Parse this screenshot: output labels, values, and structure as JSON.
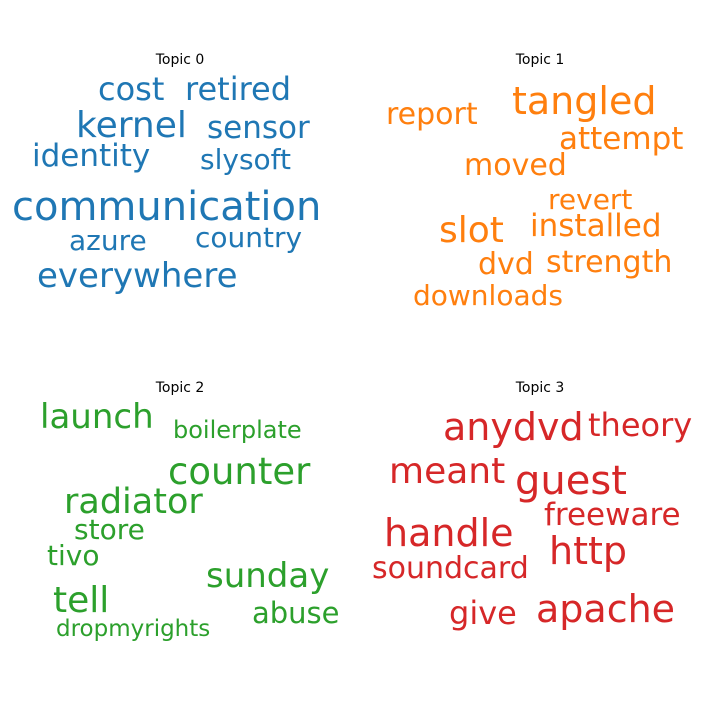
{
  "topics": [
    {
      "title": "Topic 0",
      "color": "#1f77b4",
      "words": [
        "cost",
        "retired",
        "kernel",
        "sensor",
        "identity",
        "slysoft",
        "communication",
        "azure",
        "country",
        "everywhere"
      ]
    },
    {
      "title": "Topic 1",
      "color": "#ff7f0e",
      "words": [
        "tangled",
        "report",
        "attempt",
        "moved",
        "revert",
        "slot",
        "installed",
        "dvd",
        "strength",
        "downloads"
      ]
    },
    {
      "title": "Topic 2",
      "color": "#2ca02c",
      "words": [
        "launch",
        "boilerplate",
        "counter",
        "radiator",
        "store",
        "tivo",
        "sunday",
        "tell",
        "abuse",
        "dropmyrights"
      ]
    },
    {
      "title": "Topic 3",
      "color": "#d62728",
      "words": [
        "anydvd",
        "theory",
        "meant",
        "guest",
        "freeware",
        "handle",
        "http",
        "soundcard",
        "give",
        "apache"
      ]
    }
  ]
}
